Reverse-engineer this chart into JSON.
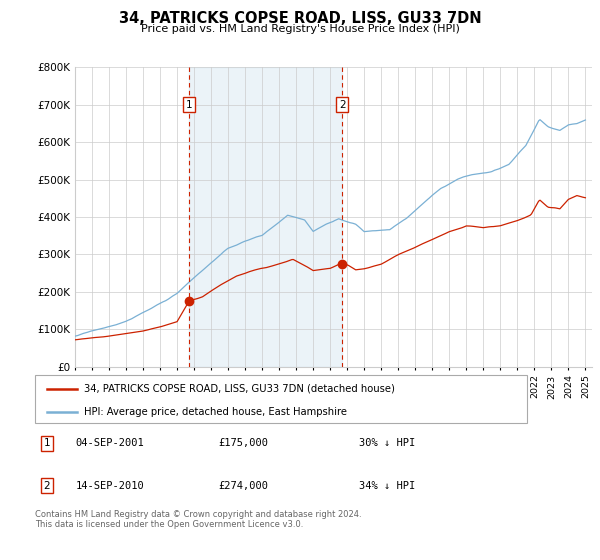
{
  "title": "34, PATRICKS COPSE ROAD, LISS, GU33 7DN",
  "subtitle": "Price paid vs. HM Land Registry's House Price Index (HPI)",
  "ylim": [
    0,
    800000
  ],
  "yticks": [
    0,
    100000,
    200000,
    300000,
    400000,
    500000,
    600000,
    700000,
    800000
  ],
  "ytick_labels": [
    "£0",
    "£100K",
    "£200K",
    "£300K",
    "£400K",
    "£500K",
    "£600K",
    "£700K",
    "£800K"
  ],
  "hpi_color": "#7ab0d4",
  "price_color": "#cc2200",
  "marker1_date_num": 2001.708,
  "marker1_price": 175000,
  "marker1_label": "04-SEP-2001",
  "marker1_value_str": "£175,000",
  "marker1_pct": "30% ↓ HPI",
  "marker2_date_num": 2010.708,
  "marker2_price": 274000,
  "marker2_label": "14-SEP-2010",
  "marker2_value_str": "£274,000",
  "marker2_pct": "34% ↓ HPI",
  "legend_line1": "34, PATRICKS COPSE ROAD, LISS, GU33 7DN (detached house)",
  "legend_line2": "HPI: Average price, detached house, East Hampshire",
  "footer1": "Contains HM Land Registry data © Crown copyright and database right 2024.",
  "footer2": "This data is licensed under the Open Government Licence v3.0.",
  "background_color": "#ffffff",
  "grid_color": "#cccccc"
}
